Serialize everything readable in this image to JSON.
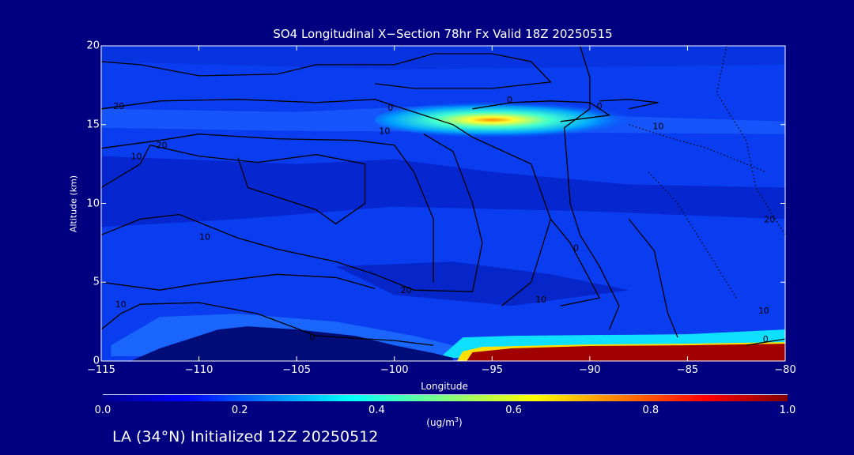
{
  "chart_data": {
    "type": "heatmap",
    "title": "SO4 Longitudinal X−Section 78hr  Fx Valid 18Z 20250515",
    "xlabel": "Longitude",
    "ylabel": "Altitude (km)",
    "xlim": [
      -115,
      -80
    ],
    "ylim": [
      0,
      20
    ],
    "xticks": [
      "−115",
      "−110",
      "−105",
      "−100",
      "−95",
      "−90",
      "−85",
      "−80"
    ],
    "xtick_values": [
      -115,
      -110,
      -105,
      -100,
      -95,
      -90,
      -85,
      -80
    ],
    "yticks": [
      "0",
      "5",
      "10",
      "15",
      "20"
    ],
    "ytick_values": [
      0,
      5,
      10,
      15,
      20
    ],
    "colorbar": {
      "range": [
        0.0,
        1.0
      ],
      "ticks": [
        "0.0",
        "0.2",
        "0.4",
        "0.6",
        "0.8",
        "1.0"
      ],
      "tick_values": [
        0.0,
        0.2,
        0.4,
        0.6,
        0.8,
        1.0
      ],
      "units_prefix": "(ug/m",
      "units_sup": "3",
      "units_suffix": ")"
    },
    "features": [
      {
        "name": "upper-plume",
        "lon": [
          -97,
          -86
        ],
        "alt": 15.3,
        "peak_value": 0.65
      },
      {
        "name": "surface-plume",
        "lon": [
          -97,
          -80
        ],
        "alt": [
          0,
          1.2
        ],
        "peak_value": 1.0
      },
      {
        "name": "terrain",
        "lon": [
          -113,
          -101
        ],
        "alt_max": 2.2
      }
    ],
    "contour_labels": [
      {
        "text": "0",
        "lon": -100.2,
        "alt": 16.1
      },
      {
        "text": "20",
        "lon": -114.1,
        "alt": 16.2
      },
      {
        "text": "20",
        "lon": -111.9,
        "alt": 13.7
      },
      {
        "text": "10",
        "lon": -113.2,
        "alt": 13.0
      },
      {
        "text": "0",
        "lon": -94.1,
        "alt": 16.6
      },
      {
        "text": "0",
        "lon": -89.5,
        "alt": 16.2
      },
      {
        "text": "10",
        "lon": -100.5,
        "alt": 14.6
      },
      {
        "text": "10",
        "lon": -86.5,
        "alt": 14.9
      },
      {
        "text": "10",
        "lon": -109.7,
        "alt": 7.9
      },
      {
        "text": "20",
        "lon": -99.4,
        "alt": 4.5
      },
      {
        "text": "10",
        "lon": -92.5,
        "alt": 3.9
      },
      {
        "text": "0",
        "lon": -90.7,
        "alt": 7.2
      },
      {
        "text": "10",
        "lon": -114.0,
        "alt": 3.6
      },
      {
        "text": "0",
        "lon": -104.2,
        "alt": 1.5
      },
      {
        "text": "10",
        "lon": -81.1,
        "alt": 3.2
      },
      {
        "text": "0",
        "lon": -81.0,
        "alt": 1.4
      },
      {
        "text": "20",
        "lon": -80.8,
        "alt": 9.0
      }
    ]
  },
  "footer": "LA (34°N) Initialized 12Z 20250512",
  "colors": {
    "background": "#000080",
    "field": "#0a3cf0",
    "surface": "#a00000"
  }
}
